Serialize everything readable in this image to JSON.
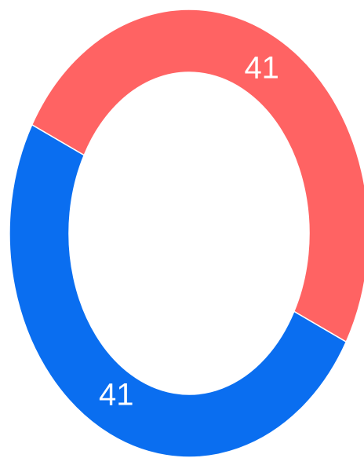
{
  "chart_data": {
    "type": "donut",
    "values": [
      41,
      41
    ],
    "colors": [
      "#ff6363",
      "#0a6ef0"
    ]
  }
}
